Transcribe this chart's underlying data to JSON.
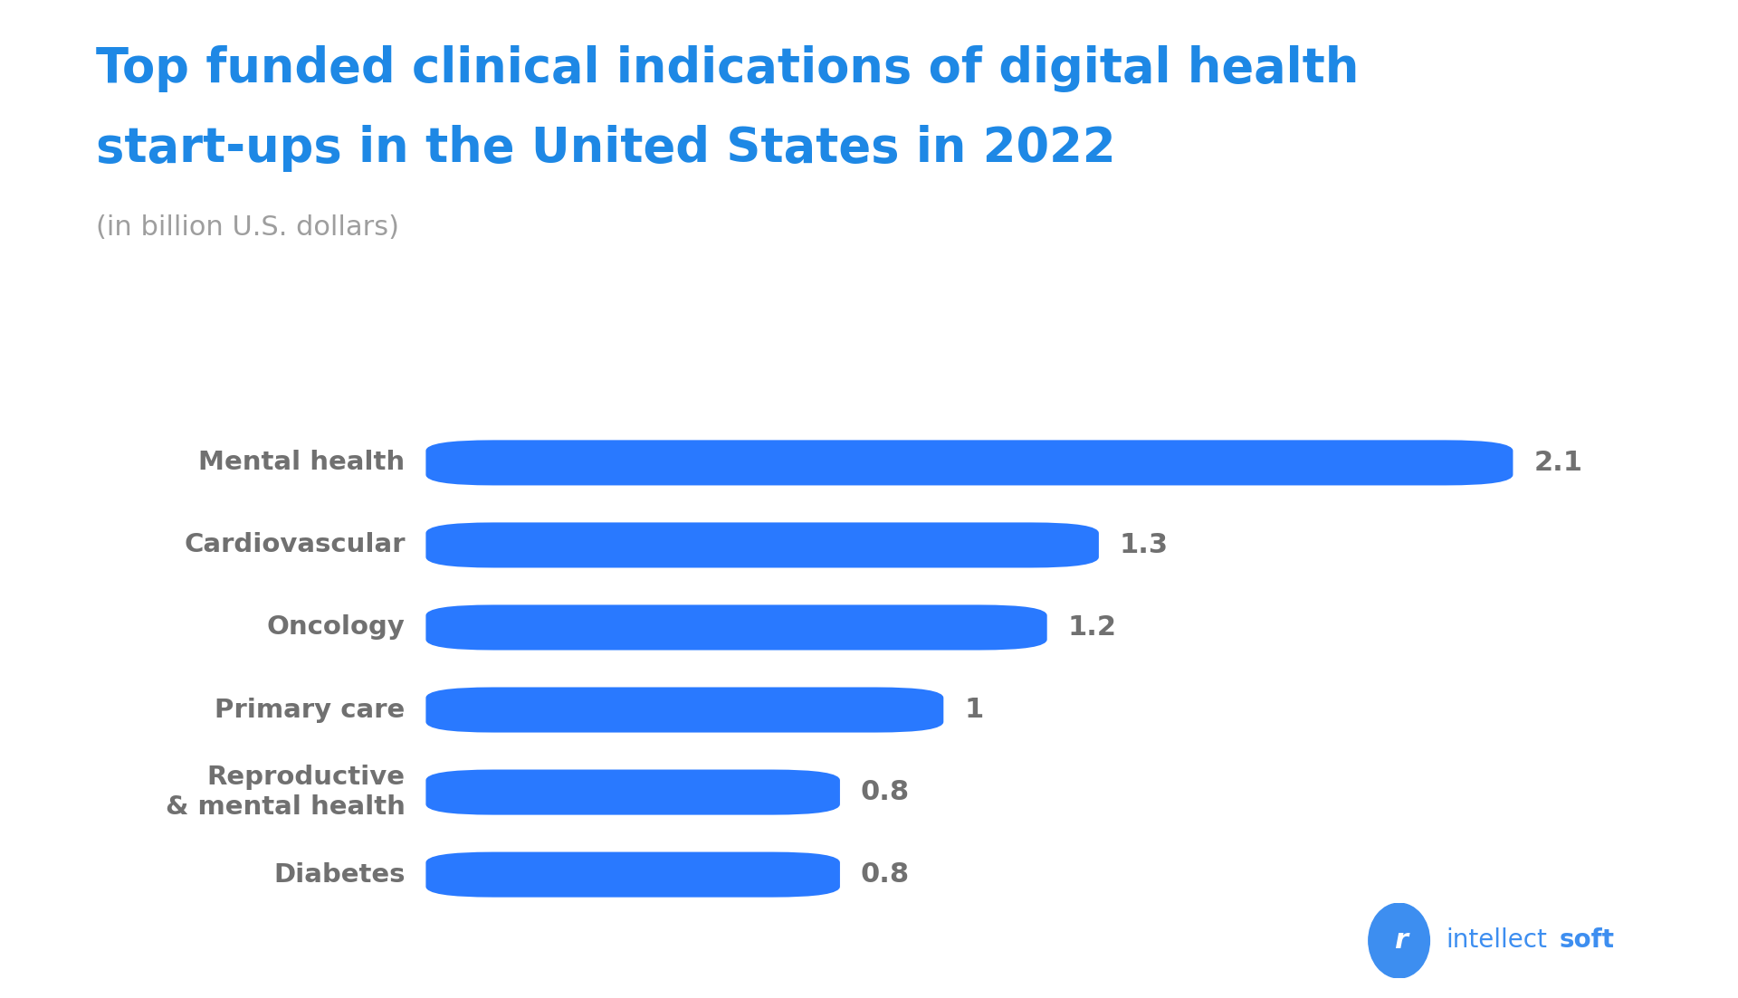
{
  "title_line1": "Top funded clinical indications of digital health",
  "title_line2": "start-ups in the United States in 2022",
  "subtitle": "(in billion U.S. dollars)",
  "categories": [
    "Diabetes",
    "Reproductive\n& mental health",
    "Primary care",
    "Oncology",
    "Cardiovascular",
    "Mental health"
  ],
  "values": [
    0.8,
    0.8,
    1.0,
    1.2,
    1.3,
    2.1
  ],
  "value_labels": [
    "0.8",
    "0.8",
    "1",
    "1.2",
    "1.3",
    "2.1"
  ],
  "bar_color": "#2979FF",
  "title_color": "#1E88E5",
  "subtitle_color": "#9E9E9E",
  "label_color": "#707070",
  "value_color": "#707070",
  "background_color": "#FFFFFF",
  "xlim_max": 2.35,
  "title_fontsize": 38,
  "subtitle_fontsize": 22,
  "label_fontsize": 21,
  "value_fontsize": 22,
  "logo_color": "#3D8EF0"
}
